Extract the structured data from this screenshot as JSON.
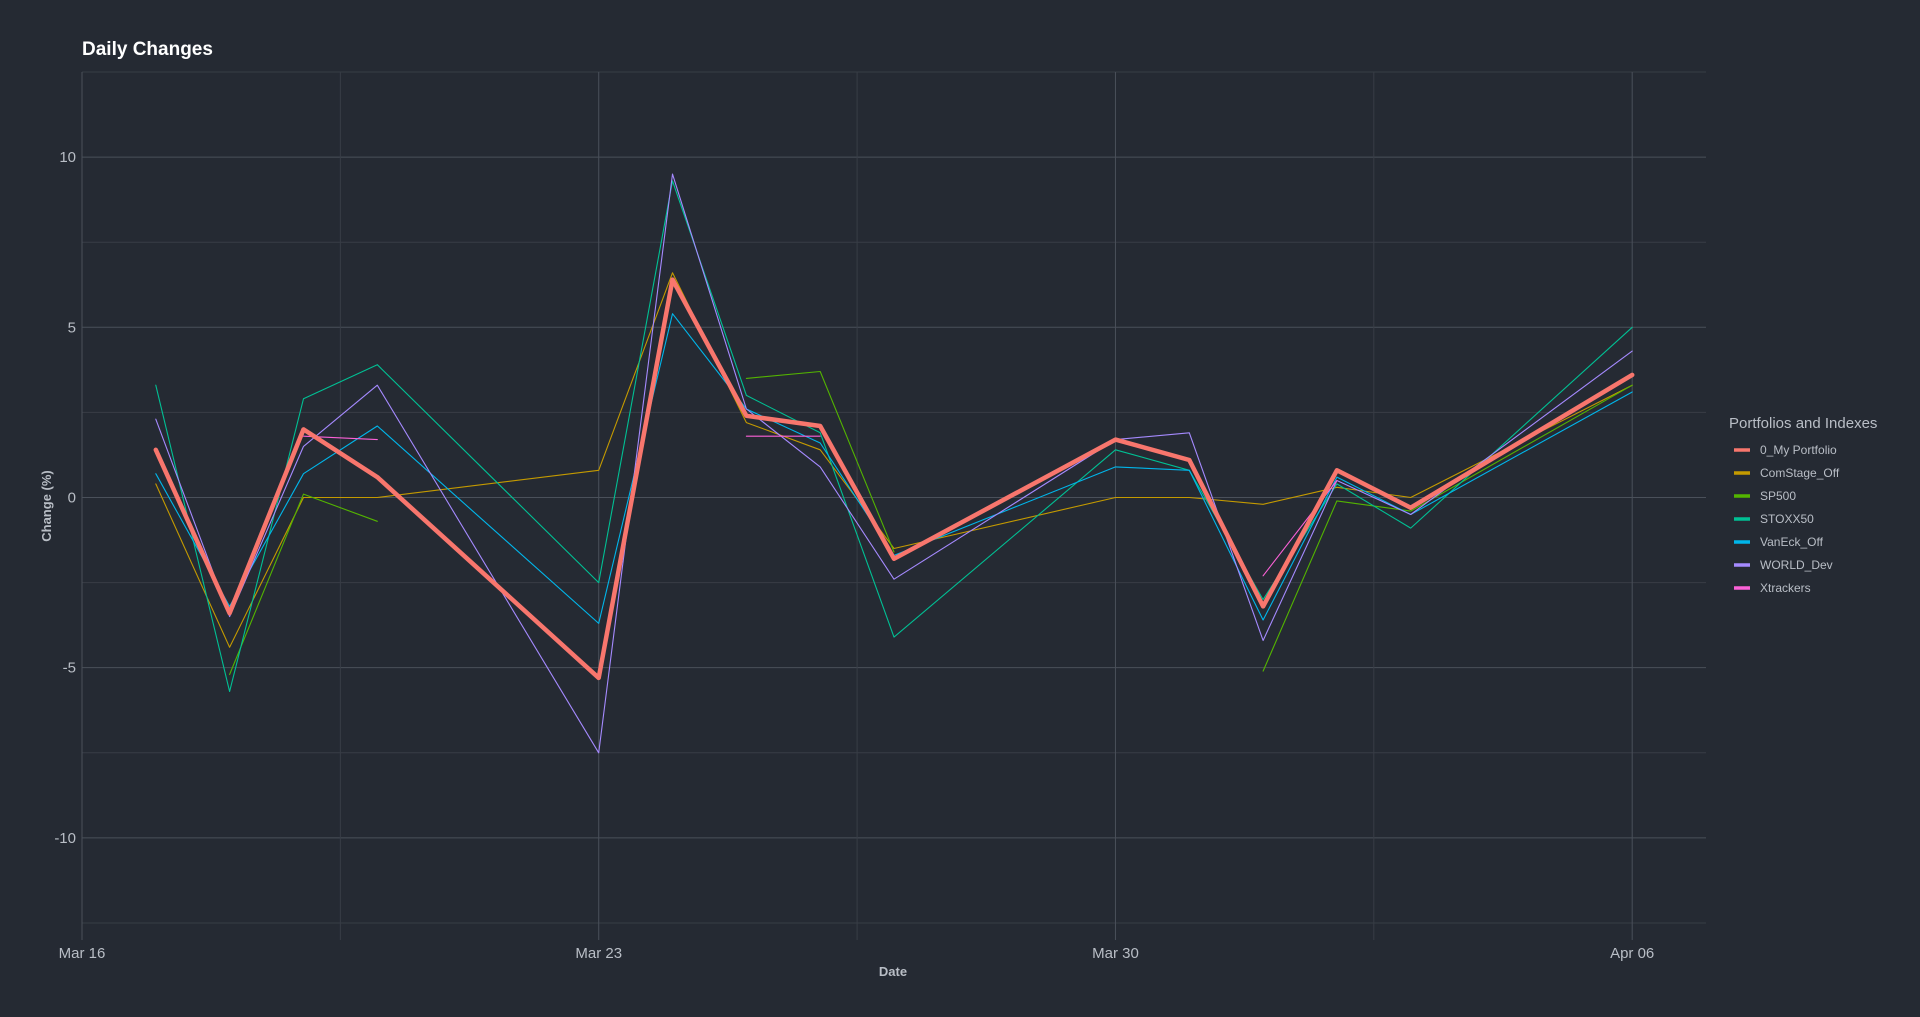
{
  "chart_data": {
    "type": "line",
    "title": "Daily Changes",
    "xlabel": "Date",
    "ylabel": "Change (%)",
    "x_axis": {
      "type": "date",
      "range": [
        "2020-03-16",
        "2020-04-07"
      ],
      "ticks": [
        {
          "date": "2020-03-16",
          "label": "Mar 16"
        },
        {
          "date": "2020-03-23",
          "label": "Mar 23"
        },
        {
          "date": "2020-03-30",
          "label": "Mar 30"
        },
        {
          "date": "2020-04-06",
          "label": "Apr 06"
        }
      ]
    },
    "y_axis": {
      "range": [
        -13,
        12.5
      ],
      "ticks": [
        -10,
        -5,
        0,
        5,
        10
      ]
    },
    "grid": true,
    "legend": {
      "title": "Portfolios and Indexes",
      "position": "right"
    },
    "series": [
      {
        "name": "0_My Portfolio",
        "color": "#f8766d",
        "emphasis": true,
        "points": [
          [
            "2020-03-17",
            1.4
          ],
          [
            "2020-03-18",
            -3.4
          ],
          [
            "2020-03-19",
            2.0
          ],
          [
            "2020-03-20",
            0.6
          ],
          [
            "2020-03-23",
            -5.3
          ],
          [
            "2020-03-24",
            6.4
          ],
          [
            "2020-03-25",
            2.4
          ],
          [
            "2020-03-26",
            2.1
          ],
          [
            "2020-03-27",
            -1.8
          ],
          [
            "2020-03-30",
            1.7
          ],
          [
            "2020-03-31",
            1.1
          ],
          [
            "2020-04-01",
            -3.2
          ],
          [
            "2020-04-02",
            0.8
          ],
          [
            "2020-04-03",
            -0.3
          ],
          [
            "2020-04-06",
            3.6
          ]
        ]
      },
      {
        "name": "ComStage_Off",
        "color": "#c49a00",
        "points": [
          [
            "2020-03-17",
            0.4
          ],
          [
            "2020-03-18",
            -4.4
          ],
          [
            "2020-03-19",
            0.0
          ],
          [
            "2020-03-20",
            0.0
          ],
          [
            "2020-03-23",
            0.8
          ],
          [
            "2020-03-24",
            6.6
          ],
          [
            "2020-03-25",
            2.2
          ],
          [
            "2020-03-26",
            1.4
          ],
          [
            "2020-03-27",
            -1.5
          ],
          [
            "2020-03-30",
            0.0
          ],
          [
            "2020-03-31",
            0.0
          ],
          [
            "2020-04-01",
            -0.2
          ],
          [
            "2020-04-02",
            0.3
          ],
          [
            "2020-04-03",
            0.0
          ],
          [
            "2020-04-06",
            3.3
          ]
        ]
      },
      {
        "name": "SP500",
        "color": "#53b400",
        "points": [
          [
            "2020-03-18",
            -5.2
          ],
          [
            "2020-03-19",
            0.1
          ],
          [
            "2020-03-20",
            -0.7
          ],
          null,
          [
            "2020-03-25",
            3.5
          ],
          [
            "2020-03-26",
            3.7
          ],
          [
            "2020-03-27",
            -1.6
          ],
          null,
          [
            "2020-04-01",
            -5.1
          ],
          [
            "2020-04-02",
            -0.1
          ],
          [
            "2020-04-03",
            -0.4
          ],
          [
            "2020-04-06",
            3.3
          ]
        ]
      },
      {
        "name": "STOXX50",
        "color": "#00c094",
        "points": [
          [
            "2020-03-17",
            3.3
          ],
          [
            "2020-03-18",
            -5.7
          ],
          [
            "2020-03-19",
            2.9
          ],
          [
            "2020-03-20",
            3.9
          ],
          [
            "2020-03-23",
            -2.5
          ],
          [
            "2020-03-24",
            9.3
          ],
          [
            "2020-03-25",
            3.0
          ],
          [
            "2020-03-26",
            1.9
          ],
          [
            "2020-03-27",
            -4.1
          ],
          [
            "2020-03-30",
            1.4
          ],
          [
            "2020-03-31",
            0.8
          ],
          [
            "2020-04-01",
            -3.0
          ],
          [
            "2020-04-02",
            0.4
          ],
          [
            "2020-04-03",
            -0.9
          ],
          [
            "2020-04-06",
            5.0
          ]
        ]
      },
      {
        "name": "VanEck_Off",
        "color": "#00b6eb",
        "points": [
          [
            "2020-03-17",
            0.7
          ],
          [
            "2020-03-18",
            -3.2
          ],
          [
            "2020-03-19",
            0.7
          ],
          [
            "2020-03-20",
            2.1
          ],
          [
            "2020-03-23",
            -3.7
          ],
          [
            "2020-03-24",
            5.4
          ],
          [
            "2020-03-25",
            2.6
          ],
          [
            "2020-03-26",
            1.6
          ],
          [
            "2020-03-27",
            -1.7
          ],
          [
            "2020-03-30",
            0.9
          ],
          [
            "2020-03-31",
            0.8
          ],
          [
            "2020-04-01",
            -3.6
          ],
          [
            "2020-04-02",
            0.6
          ],
          [
            "2020-04-03",
            -0.5
          ],
          [
            "2020-04-06",
            3.1
          ]
        ]
      },
      {
        "name": "WORLD_Dev",
        "color": "#a58aff",
        "points": [
          [
            "2020-03-17",
            2.3
          ],
          [
            "2020-03-18",
            -3.5
          ],
          [
            "2020-03-19",
            1.5
          ],
          [
            "2020-03-20",
            3.3
          ],
          [
            "2020-03-23",
            -7.5
          ],
          [
            "2020-03-24",
            9.5
          ],
          [
            "2020-03-25",
            2.6
          ],
          [
            "2020-03-26",
            0.9
          ],
          [
            "2020-03-27",
            -2.4
          ],
          [
            "2020-03-30",
            1.7
          ],
          [
            "2020-03-31",
            1.9
          ],
          [
            "2020-04-01",
            -4.2
          ],
          [
            "2020-04-02",
            0.5
          ],
          [
            "2020-04-03",
            -0.5
          ],
          [
            "2020-04-06",
            4.3
          ]
        ]
      },
      {
        "name": "Xtrackers",
        "color": "#fb61d7",
        "points": [
          [
            "2020-03-19",
            1.8
          ],
          [
            "2020-03-20",
            1.7
          ],
          null,
          [
            "2020-03-25",
            1.8
          ],
          [
            "2020-03-26",
            1.8
          ],
          null,
          [
            "2020-04-01",
            -2.3
          ],
          [
            "2020-04-02",
            0.5
          ]
        ]
      }
    ]
  }
}
